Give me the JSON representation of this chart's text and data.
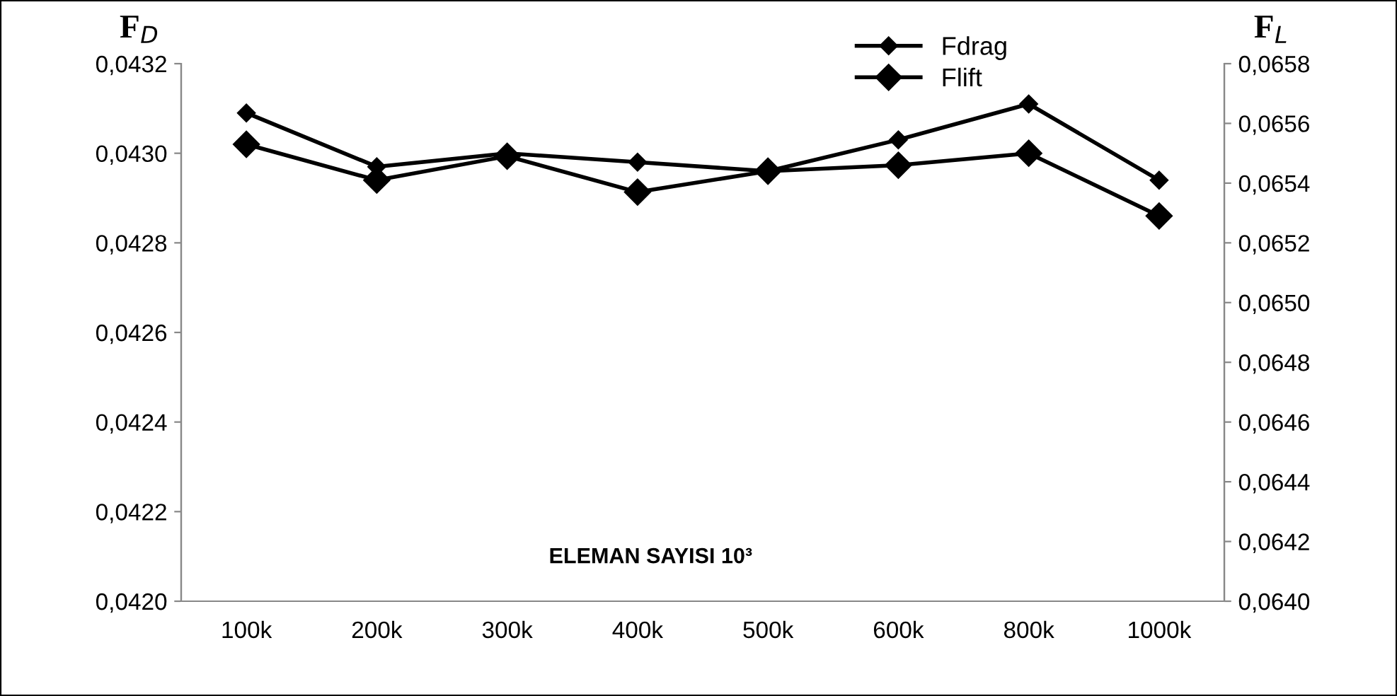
{
  "chart_data": {
    "type": "line",
    "ylabel": "F$_{D}$",
    "y2label": "F$_{L}$",
    "xlabel": "ELEMAN SAYISI 10³",
    "categories": [
      "100k",
      "200k",
      "300k",
      "400k",
      "500k",
      "600k",
      "800k",
      "1000k"
    ],
    "series": [
      {
        "name": "Fdrag",
        "color": "#000000",
        "marker": "diamond",
        "values": [
          0.04309,
          0.04297,
          0.043,
          0.04298,
          0.04296,
          0.04303,
          0.04311,
          0.04294
        ]
      },
      {
        "name": "Flift",
        "color": "#000000",
        "marker": "diamond",
        "axis": "y2",
        "values": [
          0.06553,
          0.06541,
          0.06549,
          0.06537,
          0.06544,
          0.06546,
          0.0655,
          0.06529
        ]
      }
    ],
    "ylim": [
      0.042,
      0.0432
    ],
    "yticks": [
      {
        "value": 0.042,
        "label": "0,0420"
      },
      {
        "value": 0.0422,
        "label": "0,0422"
      },
      {
        "value": 0.0424,
        "label": "0,0424"
      },
      {
        "value": 0.0426,
        "label": "0,0426"
      },
      {
        "value": 0.0428,
        "label": "0,0428"
      },
      {
        "value": 0.043,
        "label": "0,0430"
      },
      {
        "value": 0.0432,
        "label": "0,0432"
      }
    ],
    "y2lim": [
      0.064,
      0.0658
    ],
    "y2ticks": [
      {
        "value": 0.064,
        "label": "0,0640"
      },
      {
        "value": 0.0642,
        "label": "0,0642"
      },
      {
        "value": 0.0644,
        "label": "0,0644"
      },
      {
        "value": 0.0646,
        "label": "0,0646"
      },
      {
        "value": 0.0648,
        "label": "0,0648"
      },
      {
        "value": 0.065,
        "label": "0,0650"
      },
      {
        "value": 0.0652,
        "label": "0,0652"
      },
      {
        "value": 0.0654,
        "label": "0,0654"
      },
      {
        "value": 0.0656,
        "label": "0,0656"
      },
      {
        "value": 0.0658,
        "label": "0,0658"
      }
    ],
    "grid": false,
    "legend": "top",
    "line_style": "solid"
  }
}
